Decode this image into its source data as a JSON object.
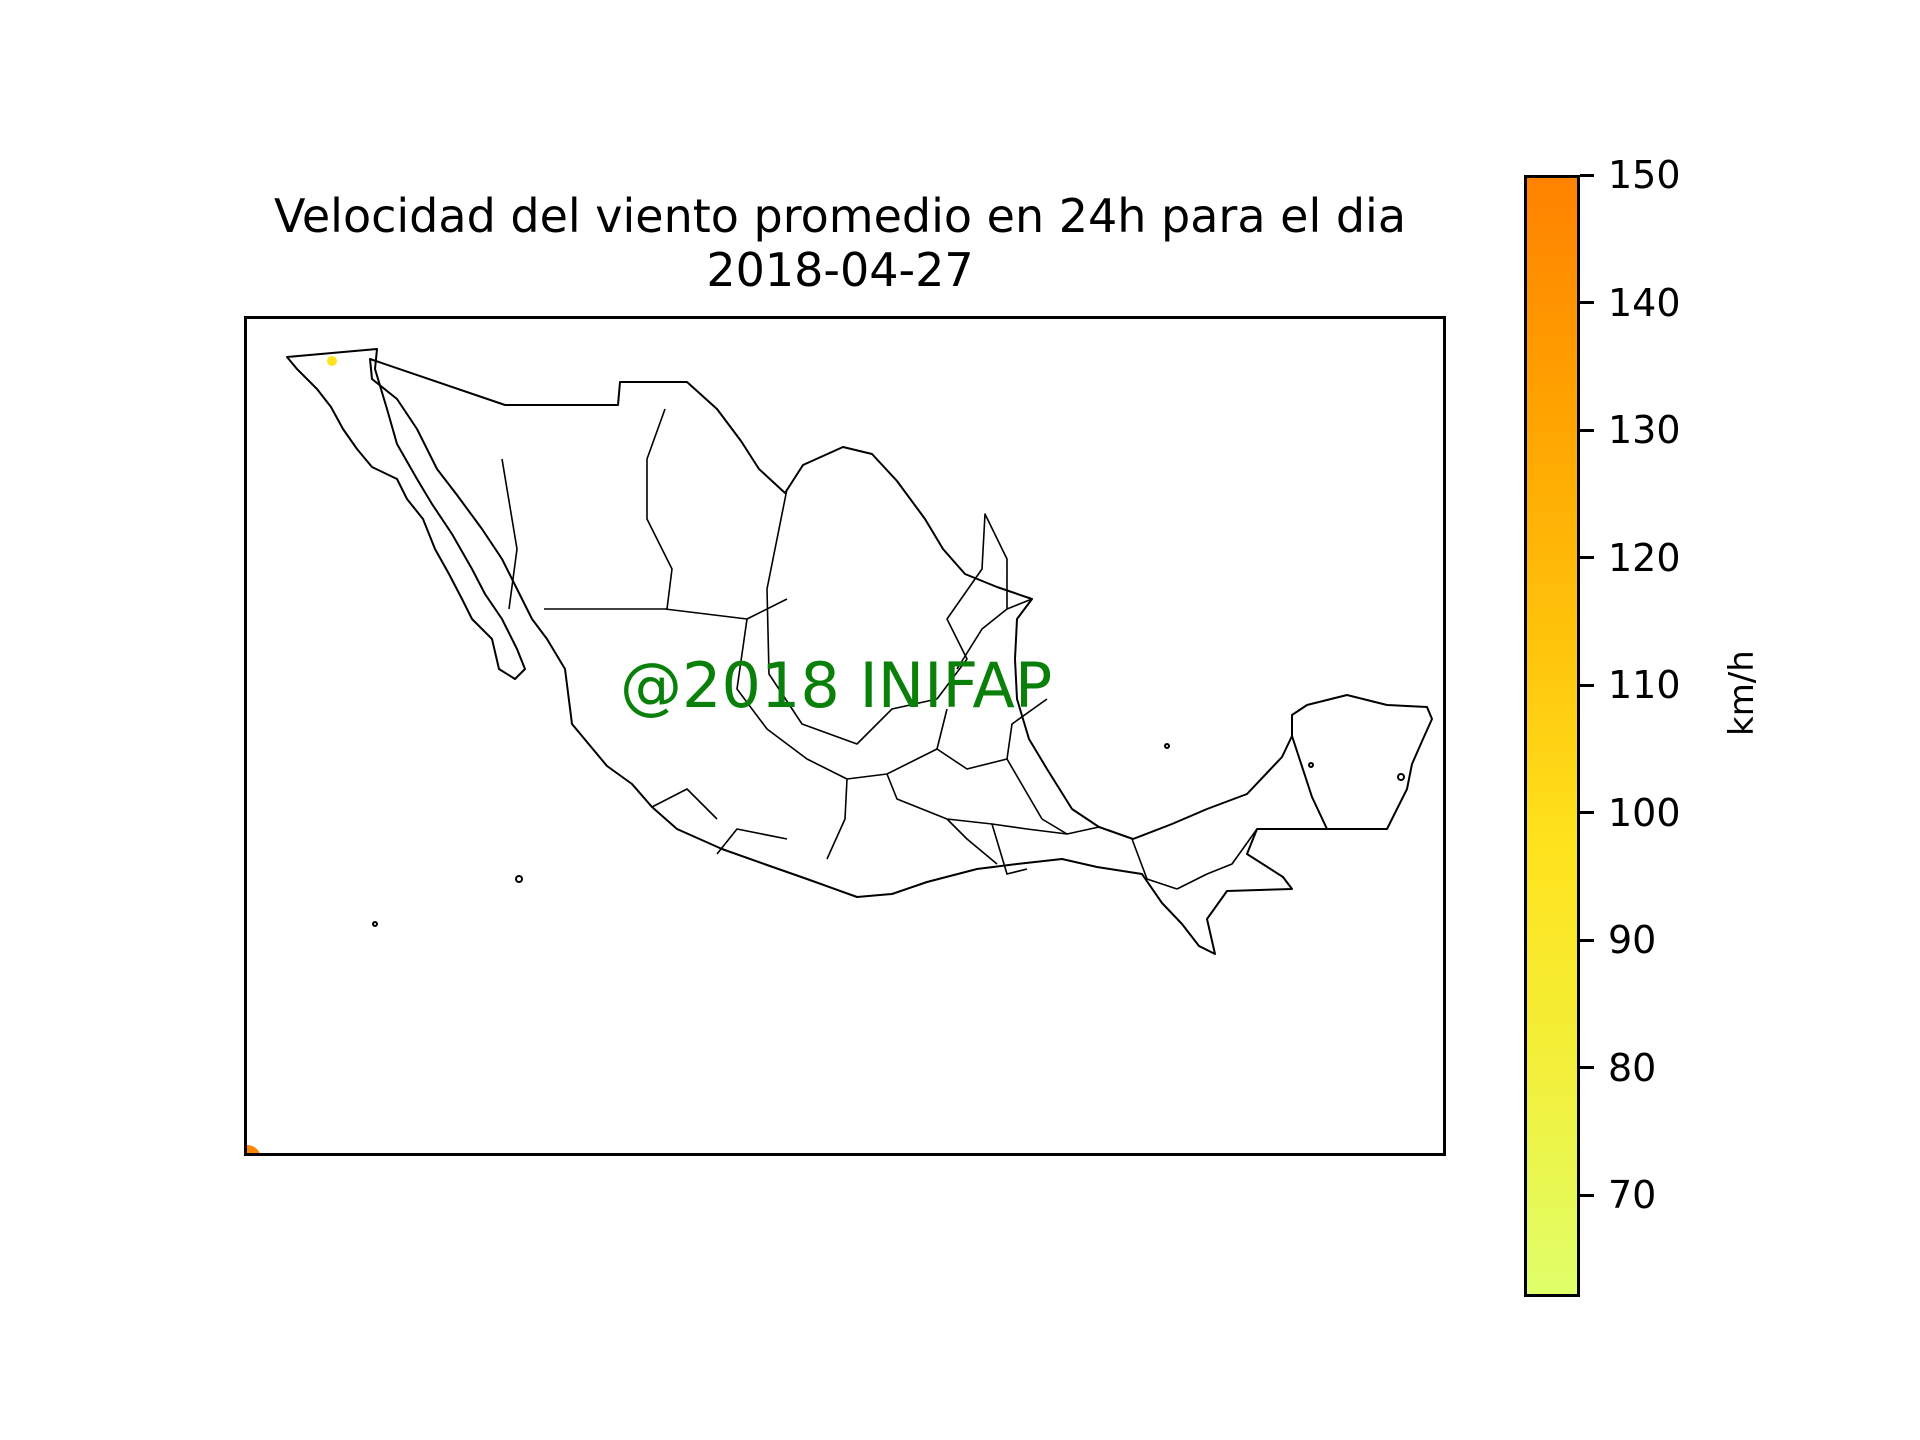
{
  "title": {
    "line1": "Velocidad del viento promedio en 24h para el dia",
    "line2": "2018-04-27"
  },
  "watermark": "@2018 INIFAP",
  "colorbar": {
    "unit_label": "km/h",
    "min": 62,
    "max": 150,
    "ticks": [
      "70",
      "80",
      "90",
      "100",
      "110",
      "120",
      "130",
      "140",
      "150"
    ],
    "colors": [
      "#e0ff6a",
      "#f2f03a",
      "#ffe31e",
      "#ffc10a",
      "#ffa200",
      "#ff8200"
    ]
  },
  "map": {
    "line_color": "#000000",
    "data_points": [
      {
        "value": 85,
        "color": "#ffe31e",
        "lon": -115.1,
        "lat": 32.6
      },
      {
        "value": 145,
        "color": "#ff8200",
        "lon": -118.4,
        "lat": 14.5
      }
    ]
  },
  "chart_data": {
    "type": "heatmap",
    "title": "Velocidad del viento promedio en 24h para el dia 2018-04-27",
    "colorbar_label": "km/h",
    "colorbar_range": [
      62,
      150
    ],
    "colorbar_ticks": [
      70,
      80,
      90,
      100,
      110,
      120,
      130,
      140,
      150
    ],
    "points": [
      {
        "lon": -115.1,
        "lat": 32.6,
        "value": 85
      },
      {
        "lon": -118.4,
        "lat": 14.5,
        "value": 145
      }
    ]
  }
}
